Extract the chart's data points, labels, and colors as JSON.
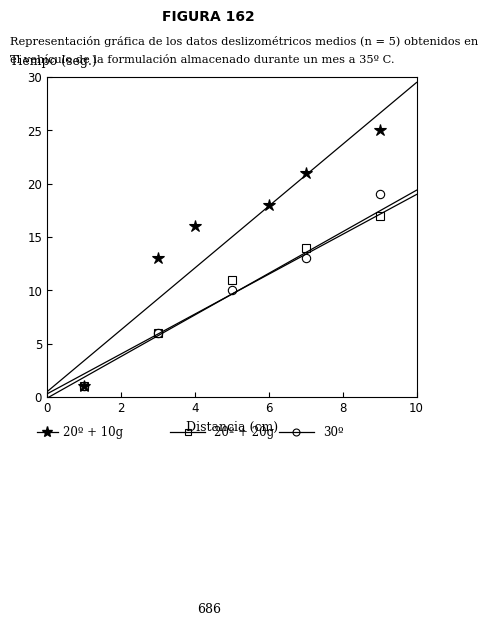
{
  "title": "FIGURA 162",
  "caption_line1": "Representación gráfica de los datos deslizométricos medios (n = 5) obtenidos en",
  "caption_line2": "el vehículo de la formulación almacenado durante un mes a 35º C.",
  "xlabel": "Distancia (cm)",
  "ylabel": "Tiempo (seg.)",
  "xlim": [
    0,
    10
  ],
  "ylim": [
    0,
    30
  ],
  "xticks": [
    0,
    2,
    4,
    6,
    8,
    10
  ],
  "yticks": [
    0,
    5,
    10,
    15,
    20,
    25,
    30
  ],
  "page_number": "686",
  "series": [
    {
      "label": "20º + 10g",
      "marker": "*",
      "x_data": [
        1,
        3,
        4,
        6,
        7,
        9
      ],
      "y_data": [
        1.0,
        13.0,
        16.0,
        18.0,
        21.0,
        25.0
      ],
      "fit_slope": 2.9,
      "fit_intercept": 0.5
    },
    {
      "label": "20º + 20g",
      "marker": "s",
      "x_data": [
        1,
        3,
        5,
        7,
        9
      ],
      "y_data": [
        1.0,
        6.0,
        11.0,
        14.0,
        17.0
      ],
      "fit_slope": 1.87,
      "fit_intercept": 0.3
    },
    {
      "label": "30º",
      "marker": "o",
      "x_data": [
        1,
        3,
        5,
        7,
        9
      ],
      "y_data": [
        1.0,
        6.0,
        10.0,
        13.0,
        19.0
      ],
      "fit_slope": 1.95,
      "fit_intercept": -0.1
    }
  ],
  "background_color": "#ffffff",
  "marker_size_star": 9,
  "marker_size_sq": 6,
  "marker_size_circle": 6
}
